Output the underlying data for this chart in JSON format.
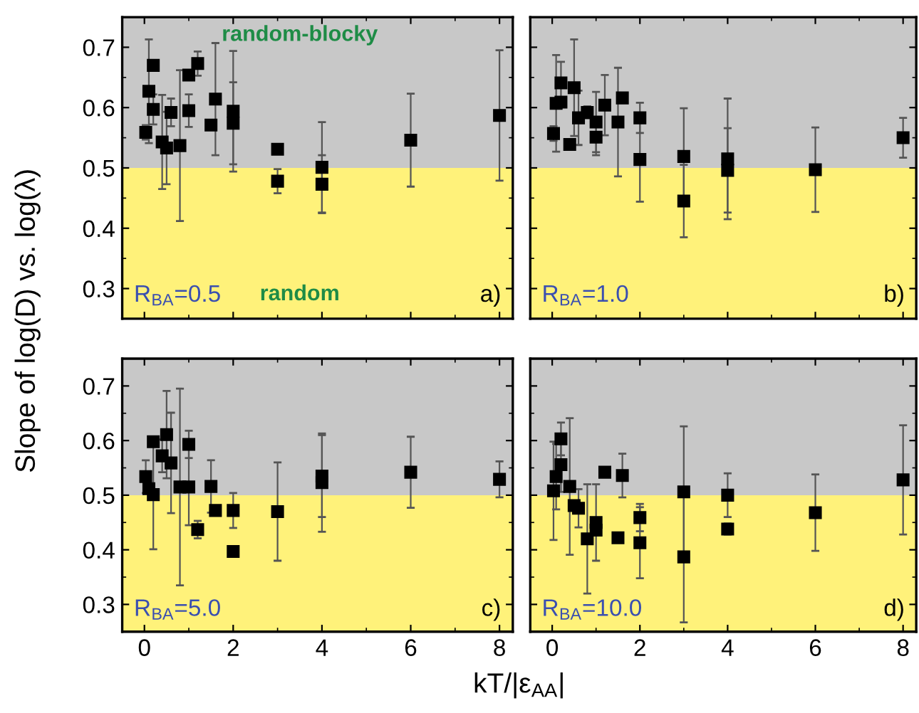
{
  "chart_data": [
    {
      "type": "scatter",
      "ylabel": "Slope of log(D) vs. log(λ)",
      "xlim": [
        -0.5,
        8.3
      ],
      "ylim": [
        0.25,
        0.75
      ],
      "xticks": [
        0,
        2,
        4,
        6,
        8
      ],
      "yticks": [
        0.3,
        0.4,
        0.5,
        0.6,
        0.7
      ],
      "tick_labels": "y",
      "marker": "square",
      "grid": false,
      "bands": [
        {
          "axis": "y",
          "from": 0.5,
          "to": 0.75,
          "label": "random-blocky",
          "color": "#c8c8c8"
        },
        {
          "axis": "y",
          "from": 0.25,
          "to": 0.5,
          "label": "random",
          "color": "#fff27a"
        }
      ],
      "annotations": [
        "R$_{BA}$=0.5",
        "a)"
      ],
      "series": [
        {
          "color": "#000000",
          "x": [
            0.03,
            0.1,
            0.2,
            0.2,
            0.4,
            0.5,
            0.6,
            0.8,
            1.0,
            1.0,
            1.2,
            1.5,
            1.6,
            2,
            2,
            3,
            3,
            4,
            4,
            6,
            8
          ],
          "values": [
            0.559,
            0.627,
            0.67,
            0.597,
            0.543,
            0.533,
            0.592,
            0.537,
            0.654,
            0.595,
            0.673,
            0.571,
            0.614,
            0.594,
            0.574,
            0.531,
            0.478,
            0.501,
            0.473,
            0.546,
            0.587
          ],
          "errors": [
            0.012,
            0.086,
            null,
            0.025,
            0.078,
            0.06,
            0.023,
            0.125,
            null,
            0.027,
            0.02,
            null,
            0.093,
            0.1,
            0.068,
            null,
            0.02,
            0.075,
            0.048,
            0.077,
            0.108
          ]
        }
      ]
    },
    {
      "type": "scatter",
      "xlim": [
        -0.5,
        8.3
      ],
      "ylim": [
        0.25,
        0.75
      ],
      "xticks": [
        0,
        2,
        4,
        6,
        8
      ],
      "yticks": [
        0.3,
        0.4,
        0.5,
        0.6,
        0.7
      ],
      "tick_labels": false,
      "marker": "square",
      "grid": false,
      "bands": [
        {
          "axis": "y",
          "from": 0.5,
          "to": 0.75,
          "color": "#c8c8c8"
        },
        {
          "axis": "y",
          "from": 0.25,
          "to": 0.5,
          "color": "#fff27a"
        }
      ],
      "annotations": [
        "R$_{BA}$=1.0",
        "b)"
      ],
      "series": [
        {
          "color": "#000000",
          "x": [
            0.03,
            0.09,
            0.2,
            0.2,
            0.4,
            0.5,
            0.6,
            0.8,
            1.0,
            1.0,
            1.2,
            1.5,
            1.6,
            2,
            2,
            3,
            3,
            4,
            4,
            6,
            8
          ],
          "values": [
            0.557,
            0.607,
            0.641,
            0.609,
            0.539,
            0.633,
            0.583,
            0.592,
            0.576,
            0.551,
            0.604,
            0.576,
            0.616,
            0.583,
            0.514,
            0.519,
            0.445,
            0.515,
            0.496,
            0.497,
            0.55
          ],
          "errors": [
            0.012,
            0.08,
            0.035,
            null,
            null,
            0.08,
            0.045,
            0.01,
            0.05,
            0.03,
            0.05,
            0.09,
            null,
            0.025,
            0.07,
            0.08,
            0.06,
            0.1,
            0.07,
            0.07,
            0.033
          ]
        }
      ]
    },
    {
      "type": "scatter",
      "xlabel": "kT/|ε$_{AA}$|",
      "xlim": [
        -0.5,
        8.3
      ],
      "ylim": [
        0.25,
        0.75
      ],
      "xticks": [
        0,
        2,
        4,
        6,
        8
      ],
      "yticks": [
        0.3,
        0.4,
        0.5,
        0.6,
        0.7
      ],
      "marker": "square",
      "grid": false,
      "bands": [
        {
          "axis": "y",
          "from": 0.5,
          "to": 0.75,
          "color": "#c8c8c8"
        },
        {
          "axis": "y",
          "from": 0.25,
          "to": 0.5,
          "color": "#fff27a"
        }
      ],
      "annotations": [
        "R$_{BA}$=5.0",
        "c)"
      ],
      "series": [
        {
          "color": "#000000",
          "x": [
            0.03,
            0.1,
            0.2,
            0.2,
            0.4,
            0.5,
            0.6,
            0.8,
            1.0,
            1.0,
            1.2,
            1.5,
            1.6,
            2,
            2,
            3,
            4,
            4,
            6,
            8
          ],
          "values": [
            0.534,
            0.512,
            0.598,
            0.501,
            0.572,
            0.611,
            0.559,
            0.515,
            0.593,
            0.515,
            0.437,
            0.516,
            0.472,
            0.472,
            0.397,
            0.47,
            0.535,
            0.523,
            0.542,
            0.529
          ],
          "errors": [
            0.03,
            null,
            null,
            0.1,
            0.03,
            0.08,
            0.092,
            0.18,
            0.025,
            0.07,
            0.016,
            0.048,
            null,
            0.032,
            null,
            0.09,
            0.075,
            0.09,
            0.065,
            0.033
          ]
        }
      ]
    },
    {
      "type": "scatter",
      "xlim": [
        -0.5,
        8.3
      ],
      "ylim": [
        0.25,
        0.75
      ],
      "xticks": [
        0,
        2,
        4,
        6,
        8
      ],
      "yticks": [
        0.3,
        0.4,
        0.5,
        0.6,
        0.7
      ],
      "tick_labels": "x",
      "marker": "square",
      "grid": false,
      "bands": [
        {
          "axis": "y",
          "from": 0.5,
          "to": 0.75,
          "color": "#c8c8c8"
        },
        {
          "axis": "y",
          "from": 0.25,
          "to": 0.5,
          "color": "#fff27a"
        }
      ],
      "annotations": [
        "R$_{BA}$=10.0",
        "d)"
      ],
      "series": [
        {
          "color": "#000000",
          "x": [
            0.03,
            0.09,
            0.2,
            0.2,
            0.4,
            0.5,
            0.6,
            0.8,
            1.0,
            1.0,
            1.2,
            1.5,
            1.6,
            2,
            2,
            3,
            3,
            4,
            4,
            6,
            8
          ],
          "values": [
            0.508,
            0.534,
            0.603,
            0.556,
            0.516,
            0.481,
            0.476,
            0.42,
            0.45,
            0.436,
            0.542,
            0.422,
            0.536,
            0.459,
            0.413,
            0.506,
            0.387,
            0.5,
            0.438,
            0.468,
            0.528
          ],
          "errors": [
            0.09,
            0.06,
            0.03,
            0.05,
            0.125,
            null,
            0.035,
            0.1,
            0.07,
            null,
            0.005,
            null,
            0.04,
            0.025,
            0.065,
            0.12,
            0.12,
            0.04,
            0.01,
            0.07,
            0.1
          ]
        }
      ]
    }
  ]
}
